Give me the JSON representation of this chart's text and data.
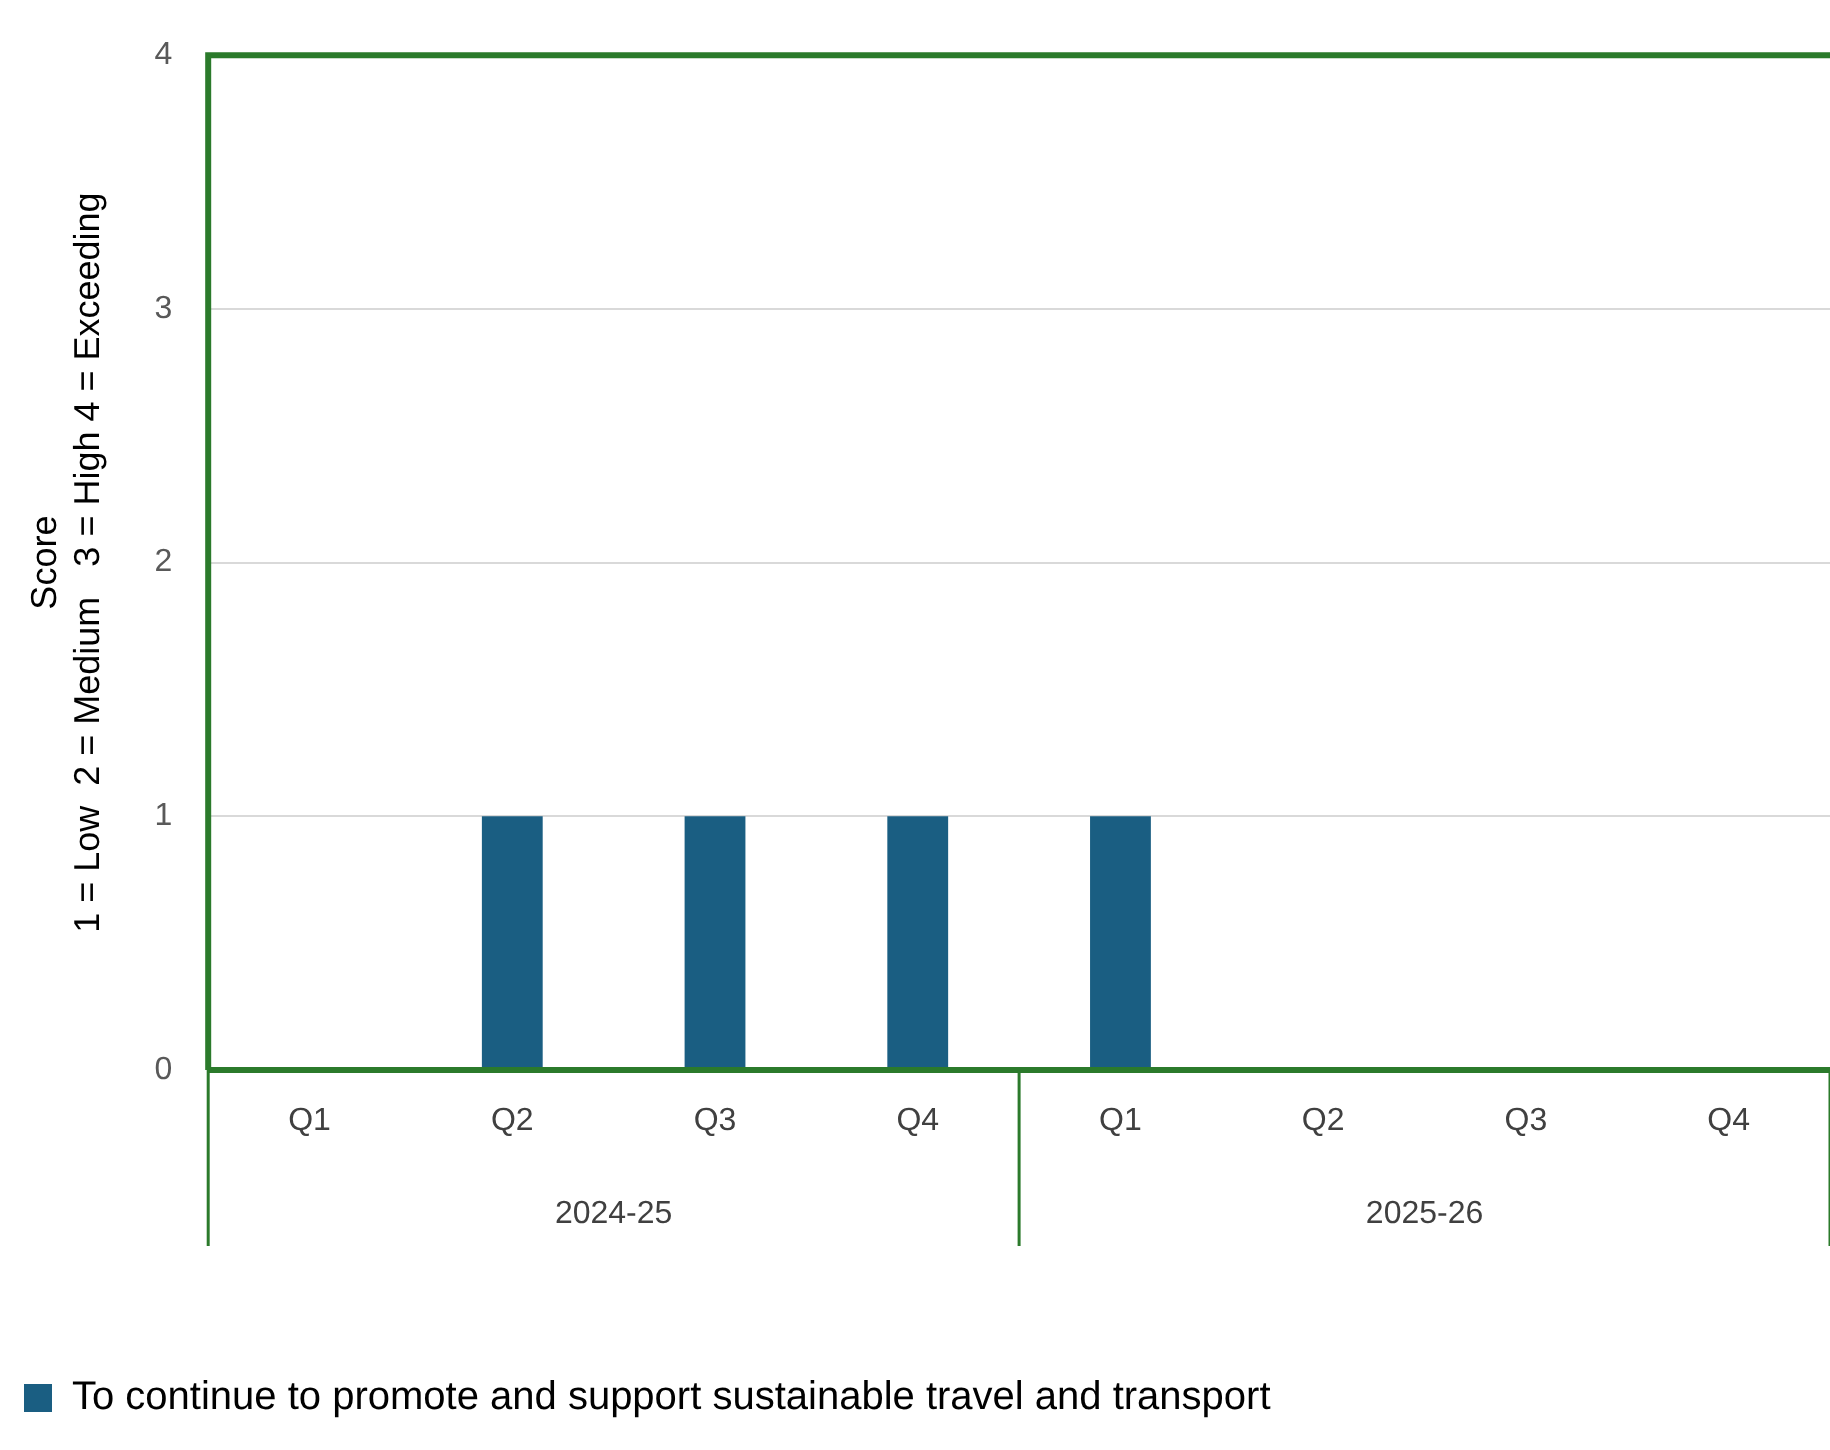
{
  "chart_data": {
    "type": "bar",
    "ylabel": "Score\n1 = Low  2 = Medium   3 = High 4 = Exceeding",
    "categories": [
      "Q1",
      "Q2",
      "Q3",
      "Q4",
      "Q1",
      "Q2",
      "Q3",
      "Q4"
    ],
    "series": [
      {
        "name": "To continue to promote and support sustainable travel and transport",
        "color": "#1a5e82",
        "values": [
          0,
          1,
          1,
          1,
          1,
          0,
          0,
          0
        ]
      }
    ],
    "ylim": [
      0,
      4
    ],
    "yticks": [
      0,
      1,
      2,
      3,
      4
    ],
    "grid": "y",
    "legend": "bottom",
    "annotations": [
      "2024-25",
      "2025-26"
    ]
  }
}
